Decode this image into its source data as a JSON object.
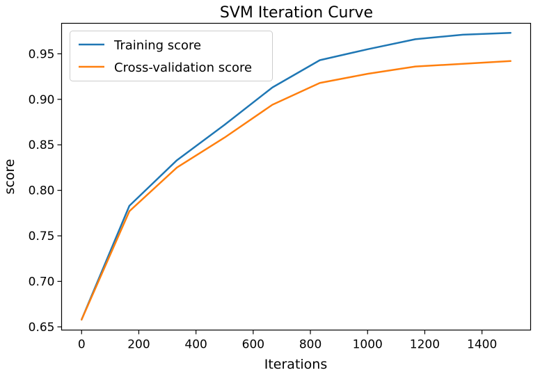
{
  "chart_data": {
    "type": "line",
    "title": "SVM Iteration Curve",
    "xlabel": "Iterations",
    "ylabel": "score",
    "xlim": [
      -70,
      1570
    ],
    "ylim": [
      0.6465,
      0.9835
    ],
    "xticks": [
      0,
      200,
      400,
      600,
      800,
      1000,
      1200,
      1400
    ],
    "yticks": [
      0.65,
      0.7,
      0.75,
      0.8,
      0.85,
      0.9,
      0.95
    ],
    "ytick_labels": [
      "0.65",
      "0.70",
      "0.75",
      "0.80",
      "0.85",
      "0.90",
      "0.95"
    ],
    "grid": false,
    "legend": "upper left",
    "x": [
      0,
      167,
      333,
      500,
      667,
      833,
      1000,
      1167,
      1333,
      1500
    ],
    "series": [
      {
        "name": "Training score",
        "color": "#1f77b4",
        "values": [
          0.658,
          0.783,
          0.833,
          0.872,
          0.913,
          0.943,
          0.955,
          0.966,
          0.971,
          0.973
        ]
      },
      {
        "name": "Cross-validation score",
        "color": "#ff7f0e",
        "values": [
          0.658,
          0.777,
          0.825,
          0.858,
          0.894,
          0.918,
          0.928,
          0.936,
          0.939,
          0.942
        ]
      }
    ]
  }
}
